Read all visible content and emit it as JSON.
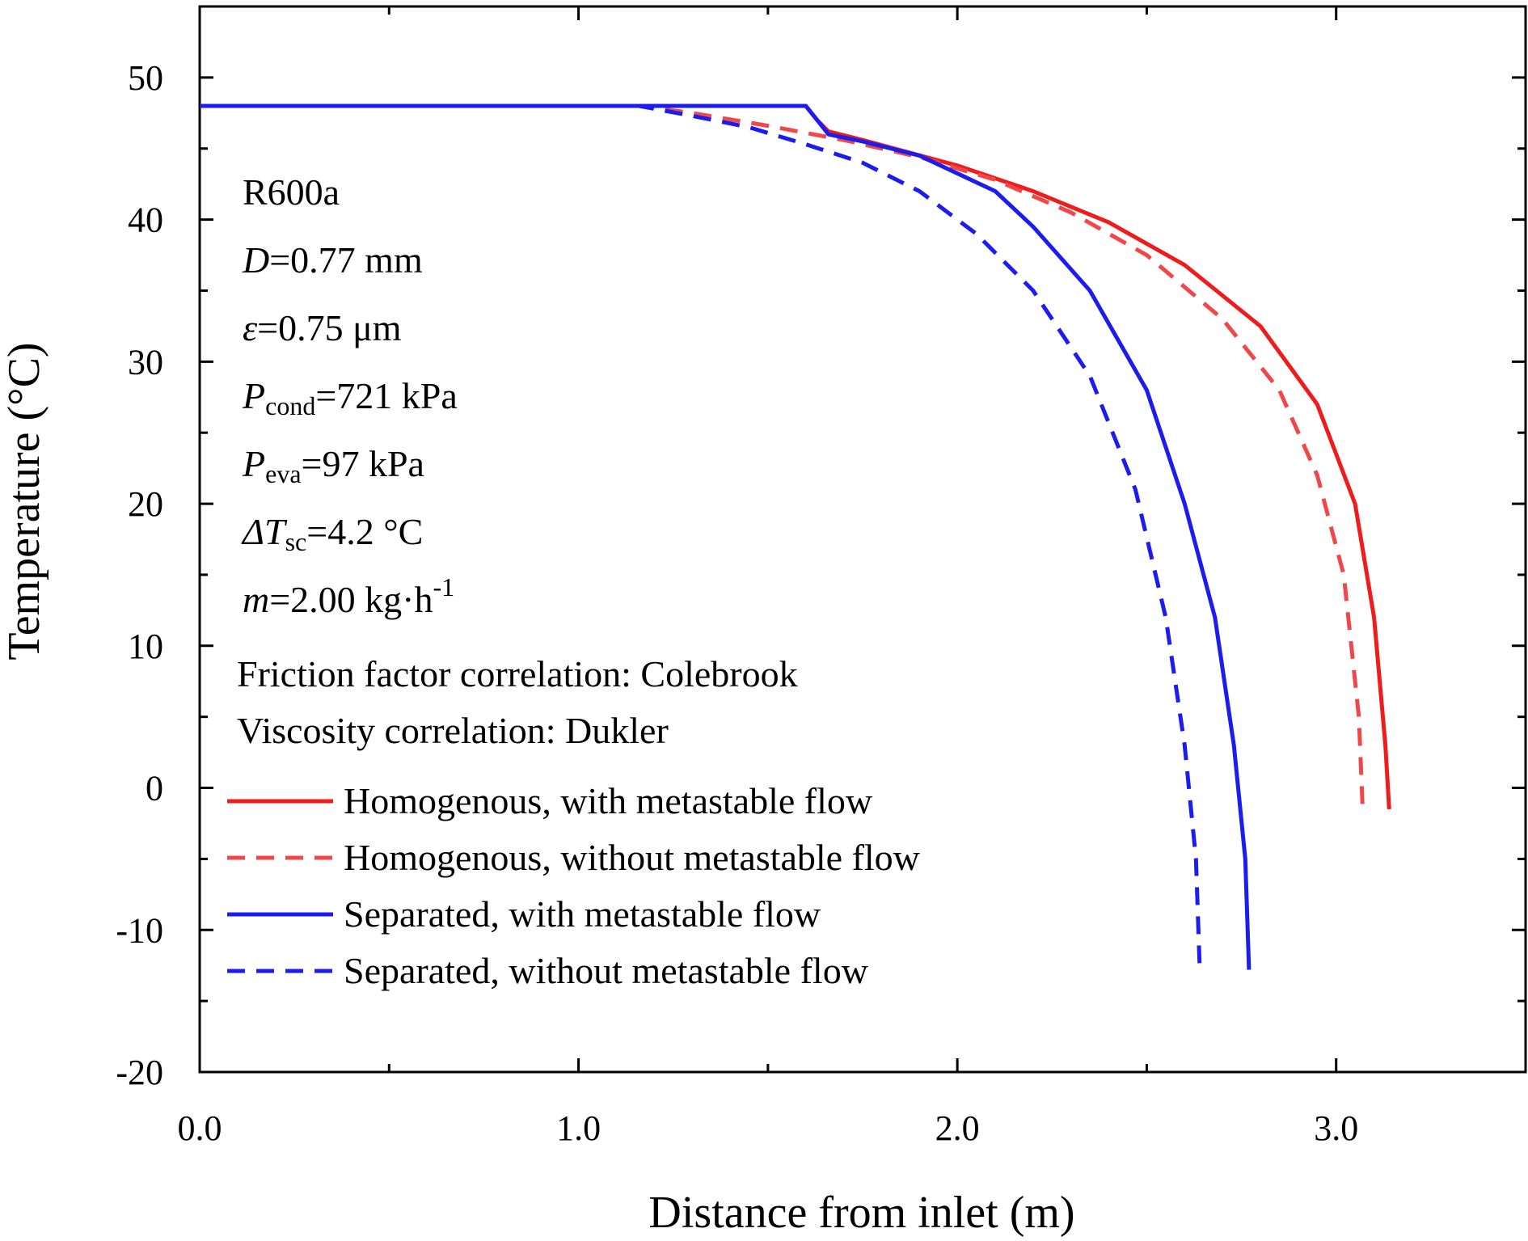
{
  "chart_data": {
    "type": "line",
    "xlabel": "Distance from inlet (m)",
    "ylabel": "Temperature (°C)",
    "xlim": [
      0,
      3.5
    ],
    "ylim": [
      -20,
      55
    ],
    "x_ticks": [
      0.0,
      1.0,
      2.0,
      3.0
    ],
    "x_tick_labels": [
      "0.0",
      "1.0",
      "2.0",
      "3.0"
    ],
    "x_minor_ticks": [
      0.5,
      1.5,
      2.5,
      3.5
    ],
    "y_ticks": [
      -20,
      -10,
      0,
      10,
      20,
      30,
      40,
      50
    ],
    "y_tick_labels": [
      "-20",
      "-10",
      "0",
      "10",
      "20",
      "30",
      "40",
      "50"
    ],
    "y_minor_ticks": [
      -15,
      -5,
      5,
      15,
      25,
      35,
      45
    ],
    "grid": false,
    "legend_position": "bottom-left",
    "annotations": {
      "refrigerant": "R600a",
      "diameter": {
        "symbol": "D",
        "text": "=0.77 mm"
      },
      "roughness": {
        "symbol": "ε",
        "text": "=0.75 μm"
      },
      "p_cond": {
        "symbol": "P",
        "sub": "cond",
        "text": "=721 kPa"
      },
      "p_eva": {
        "symbol": "P",
        "sub": "eva",
        "text": "=97 kPa"
      },
      "subcooling": {
        "symbol": "ΔT",
        "sub": "sc",
        "text": "=4.2 °C"
      },
      "mass_flow": {
        "symbol": "m",
        "text": "=2.00 kg·h",
        "sup": "-1"
      },
      "friction": "Friction factor correlation: Colebrook",
      "viscosity": "Viscosity correlation: Dukler"
    },
    "series": [
      {
        "name": "Homogenous, with metastable flow",
        "color": "#ee1c1c",
        "dash": "solid",
        "points": [
          [
            0.0,
            48.0
          ],
          [
            1.16,
            48.0
          ],
          [
            1.6,
            48.0
          ],
          [
            1.63,
            47.0
          ],
          [
            1.66,
            46.2
          ],
          [
            1.75,
            45.6
          ],
          [
            2.0,
            43.8
          ],
          [
            2.2,
            42.0
          ],
          [
            2.4,
            39.8
          ],
          [
            2.6,
            36.8
          ],
          [
            2.8,
            32.5
          ],
          [
            2.95,
            27.0
          ],
          [
            3.05,
            20.0
          ],
          [
            3.1,
            12.0
          ],
          [
            3.13,
            3.0
          ],
          [
            3.14,
            -1.5
          ]
        ]
      },
      {
        "name": "Homogenous, without metastable flow",
        "color": "#f0484a",
        "dash": "dashed",
        "points": [
          [
            0.0,
            48.0
          ],
          [
            1.16,
            48.0
          ],
          [
            1.3,
            47.5
          ],
          [
            1.5,
            46.6
          ],
          [
            1.7,
            45.6
          ],
          [
            1.9,
            44.4
          ],
          [
            2.1,
            42.8
          ],
          [
            2.3,
            40.5
          ],
          [
            2.5,
            37.5
          ],
          [
            2.7,
            33.0
          ],
          [
            2.85,
            28.0
          ],
          [
            2.95,
            22.0
          ],
          [
            3.02,
            15.0
          ],
          [
            3.06,
            5.0
          ],
          [
            3.07,
            -1.5
          ]
        ]
      },
      {
        "name": "Separated, with metastable flow",
        "color": "#1c1cee",
        "dash": "solid",
        "points": [
          [
            0.0,
            48.0
          ],
          [
            1.6,
            48.0
          ],
          [
            1.63,
            47.0
          ],
          [
            1.66,
            46.0
          ],
          [
            1.75,
            45.5
          ],
          [
            1.9,
            44.5
          ],
          [
            2.1,
            42.0
          ],
          [
            2.2,
            39.5
          ],
          [
            2.35,
            35.0
          ],
          [
            2.5,
            28.0
          ],
          [
            2.6,
            20.0
          ],
          [
            2.68,
            12.0
          ],
          [
            2.73,
            3.0
          ],
          [
            2.76,
            -5.0
          ],
          [
            2.77,
            -12.8
          ]
        ]
      },
      {
        "name": "Separated, without metastable flow",
        "color": "#1c1cee",
        "dash": "dashed",
        "points": [
          [
            0.0,
            48.0
          ],
          [
            1.16,
            48.0
          ],
          [
            1.3,
            47.3
          ],
          [
            1.45,
            46.5
          ],
          [
            1.6,
            45.3
          ],
          [
            1.75,
            44.0
          ],
          [
            1.9,
            42.0
          ],
          [
            2.05,
            39.0
          ],
          [
            2.2,
            35.0
          ],
          [
            2.35,
            29.0
          ],
          [
            2.47,
            21.0
          ],
          [
            2.55,
            12.0
          ],
          [
            2.6,
            3.0
          ],
          [
            2.63,
            -5.0
          ],
          [
            2.64,
            -12.8
          ]
        ]
      }
    ]
  }
}
